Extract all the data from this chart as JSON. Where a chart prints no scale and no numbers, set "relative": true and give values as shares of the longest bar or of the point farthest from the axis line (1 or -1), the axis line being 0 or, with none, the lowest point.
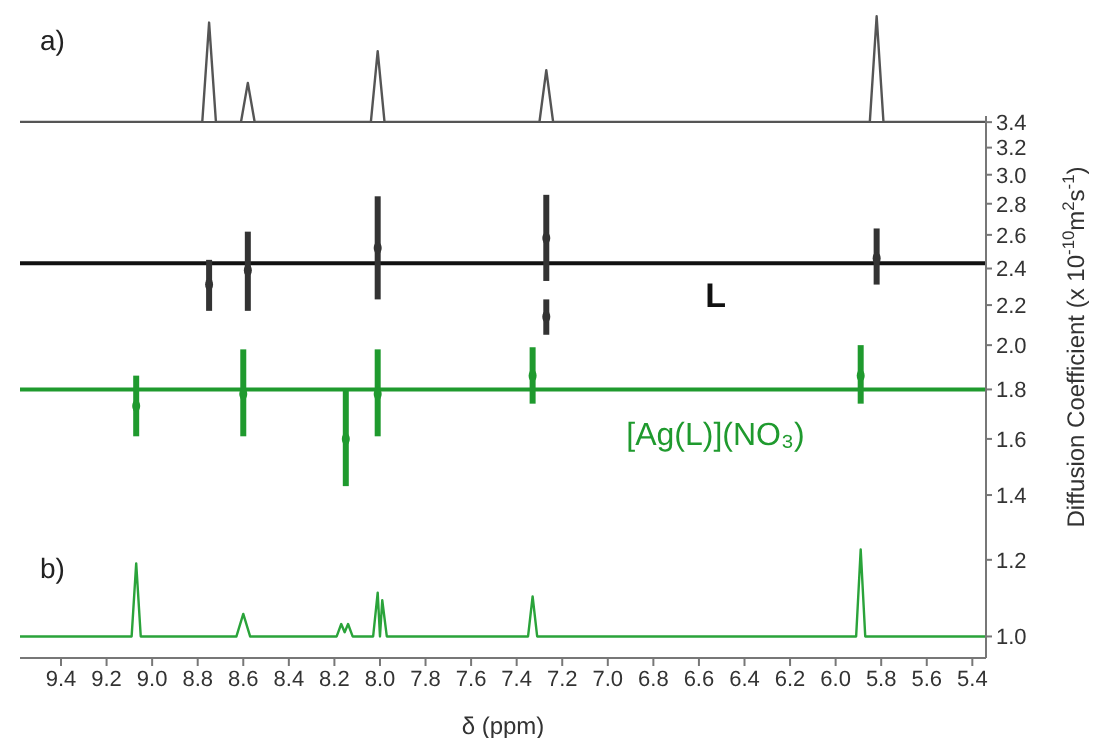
{
  "chart_data": [
    {
      "type": "line",
      "relative": true,
      "annotations": [
        "a)"
      ],
      "xlim": [
        9.58,
        5.34
      ],
      "xticks": [
        9.4,
        9.2,
        9,
        8.8,
        8.6,
        8.4,
        8.2,
        8,
        7.8,
        7.6,
        7.4,
        7.2,
        7,
        6.8,
        6.6,
        6.4,
        6.2,
        6,
        5.8,
        5.6,
        5.4
      ],
      "tick_labels": false,
      "series": [
        {
          "color": "#555555",
          "x": [
            9.58,
            8.78,
            8.75,
            8.72,
            8.61,
            8.58,
            8.55,
            8.04,
            8.01,
            7.98,
            7.3,
            7.27,
            7.24,
            5.85,
            5.82,
            5.79,
            5.34
          ],
          "values": [
            0,
            0,
            0.94,
            0,
            0,
            0.37,
            0,
            0,
            0.67,
            0,
            0,
            0.49,
            0,
            0,
            1,
            0,
            0
          ]
        }
      ]
    },
    {
      "type": "scatter",
      "xlabel": "δ (ppm)",
      "ylabel": "Diffusion Coefficient (x 10$^{-10}$m$^{2}$s$^{-1}$)",
      "annotations": [
        "b)"
      ],
      "log": "y",
      "xlim": [
        9.58,
        5.34
      ],
      "xticks": [
        9.4,
        9.2,
        {
          "value": 9,
          "label": "9.0"
        },
        8.8,
        8.6,
        8.4,
        8.2,
        {
          "value": 8,
          "label": "8.0"
        },
        7.8,
        7.6,
        7.4,
        7.2,
        {
          "value": 7,
          "label": "7.0"
        },
        6.8,
        6.6,
        6.4,
        6.2,
        {
          "value": 6,
          "label": "6.0"
        },
        5.8,
        5.6,
        5.4
      ],
      "ylim": [
        0.95,
        3.45
      ],
      "yticks": [
        {
          "value": 1,
          "label": "1.0"
        },
        1.2,
        1.4,
        1.6,
        1.8,
        {
          "value": 2,
          "label": "2.0"
        },
        2.2,
        2.4,
        2.6,
        2.8,
        {
          "value": 3,
          "label": "3.0"
        },
        3.2,
        3.4
      ],
      "ref_lines": [
        {
          "axis": "y",
          "value": 2.43,
          "label": "L",
          "color": "#111111"
        },
        {
          "axis": "y",
          "value": 1.8,
          "label": "[Ag(L)](NO₃)",
          "color": "#1f9a2e"
        }
      ],
      "series": [
        {
          "type": "line",
          "marker": "none",
          "color": "#2aa33a",
          "x": [
            9.58,
            9.09,
            9.07,
            9.05,
            8.63,
            8.6,
            8.57,
            8.19,
            8.17,
            8.155,
            8.14,
            8.12,
            8.03,
            8.01,
            8.0,
            7.99,
            7.97,
            7.35,
            7.33,
            7.31,
            5.91,
            5.89,
            5.87,
            5.34
          ],
          "values": [
            1,
            1,
            1.19,
            1,
            1,
            1.055,
            1,
            1,
            1.03,
            1.01,
            1.03,
            1,
            1,
            1.11,
            1,
            1.09,
            1,
            1,
            1.1,
            1,
            1,
            1.23,
            1,
            1
          ]
        },
        {
          "marker": "circle",
          "color": "#333333",
          "x": [
            8.75,
            8.58,
            8.01,
            7.27,
            7.27,
            5.82
          ],
          "values": [
            2.31,
            2.39,
            2.52,
            2.58,
            2.14,
            2.46
          ],
          "errors": [
            [
              2.17,
              2.45
            ],
            [
              2.17,
              2.62
            ],
            [
              2.23,
              2.85
            ],
            [
              2.33,
              2.86
            ],
            [
              2.05,
              2.23
            ],
            [
              2.31,
              2.64
            ]
          ]
        },
        {
          "marker": "circle",
          "color": "#1f9a2e",
          "x": [
            9.07,
            8.6,
            8.15,
            8.01,
            7.33,
            5.89
          ],
          "values": [
            1.73,
            1.78,
            1.6,
            1.78,
            1.86,
            1.86
          ],
          "errors": [
            [
              1.61,
              1.86
            ],
            [
              1.61,
              1.98
            ],
            [
              1.43,
              1.8
            ],
            [
              1.61,
              1.98
            ],
            [
              1.74,
              1.99
            ],
            [
              1.74,
              2.0
            ]
          ]
        }
      ]
    }
  ]
}
